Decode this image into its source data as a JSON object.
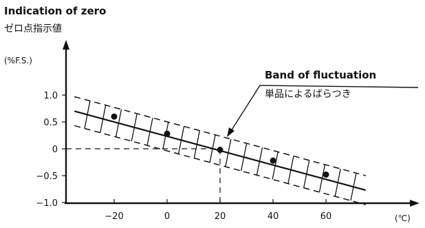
{
  "chart_data": {
    "type": "scatter",
    "title": "Indication of zero",
    "title_ja": "ゼロ点指示値",
    "ylabel": "(%F.S.)",
    "xlabel": "(℃)",
    "x_ticks": [
      -20,
      0,
      20,
      40,
      60
    ],
    "x_tick_labels": [
      "−20",
      "0",
      "20",
      "40",
      "60"
    ],
    "y_ticks": [
      1.0,
      0.5,
      0,
      -0.5,
      -1.0
    ],
    "y_tick_labels": [
      "1.0",
      "0.5",
      "0",
      "−0.5",
      "−1.0"
    ],
    "xlim": [
      -37,
      80
    ],
    "ylim": [
      -1.1,
      1.35
    ],
    "points": [
      {
        "x": -20,
        "y": 0.6
      },
      {
        "x": 0,
        "y": 0.28
      },
      {
        "x": 20,
        "y": -0.02
      },
      {
        "x": 40,
        "y": -0.22
      },
      {
        "x": 60,
        "y": -0.48
      }
    ],
    "trend_line": {
      "x": [
        -35,
        75
      ],
      "y": [
        0.7,
        -0.77
      ]
    },
    "band": {
      "upper_offset": 0.27,
      "lower_offset": -0.27
    },
    "reference": {
      "x": 20,
      "y": 0
    },
    "annotation": {
      "text": "Band of fluctuation",
      "text_ja": "単品によるばらつき"
    },
    "grid": false
  }
}
